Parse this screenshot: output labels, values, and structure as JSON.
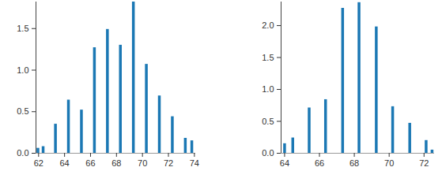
{
  "chart_data": [
    {
      "type": "bar",
      "color": "#1b78b4",
      "x": [
        61.95,
        62.35,
        63.3,
        64.3,
        65.3,
        66.3,
        67.3,
        68.3,
        69.3,
        70.3,
        71.3,
        72.3,
        73.3,
        73.8
      ],
      "values": [
        0.06,
        0.08,
        0.35,
        0.64,
        0.52,
        1.27,
        1.49,
        1.3,
        1.82,
        1.07,
        0.69,
        0.44,
        0.18,
        0.15
      ],
      "xlim": [
        61.8,
        74.1
      ],
      "xticks": [
        62,
        64,
        66,
        68,
        70,
        72,
        74
      ],
      "ylim": [
        0,
        1.82
      ],
      "yticks": [
        {
          "value": 0,
          "label": "0.0"
        },
        0.5,
        {
          "value": 1,
          "label": "1.0"
        },
        1.5
      ]
    },
    {
      "type": "bar",
      "color": "#1b78b4",
      "x": [
        64.0,
        64.47,
        65.41,
        66.35,
        67.33,
        68.27,
        69.26,
        70.2,
        71.18,
        72.12,
        72.46
      ],
      "values": [
        0.15,
        0.24,
        0.71,
        0.84,
        2.27,
        2.36,
        1.98,
        0.73,
        0.47,
        0.2,
        0.05
      ],
      "xlim": [
        63.8,
        72.6
      ],
      "xticks": [
        64,
        66,
        68,
        70,
        72
      ],
      "ylim": [
        0,
        2.37
      ],
      "yticks": [
        {
          "value": 0,
          "label": "0.0"
        },
        0.5,
        {
          "value": 1,
          "label": "1.0"
        },
        1.5,
        {
          "value": 2,
          "label": "2.0"
        }
      ]
    }
  ]
}
